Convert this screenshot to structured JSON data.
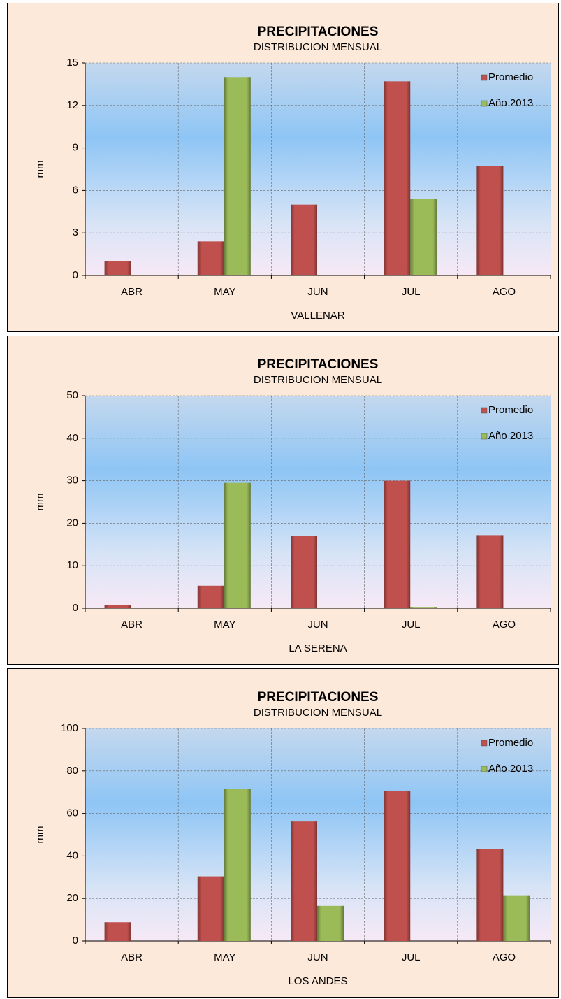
{
  "chart_data": [
    {
      "type": "bar",
      "title": "PRECIPITACIONES",
      "subtitle": "DISTRIBUCION MENSUAL",
      "x_label": "VALLENAR",
      "y_label": "mm",
      "categories": [
        "ABR",
        "MAY",
        "JUN",
        "JUL",
        "AGO"
      ],
      "series": [
        {
          "name": "Promedio",
          "color": "#c0504d",
          "values": [
            1.0,
            2.4,
            5.0,
            13.7,
            7.7
          ]
        },
        {
          "name": "Año 2013",
          "color": "#9bbb59",
          "values": [
            0,
            14.0,
            0,
            5.4,
            0
          ]
        }
      ],
      "ylim": [
        0,
        15
      ],
      "yticks": [
        0,
        3,
        6,
        9,
        12,
        15
      ],
      "grid": true,
      "legend": "top-right"
    },
    {
      "type": "bar",
      "title": "PRECIPITACIONES",
      "subtitle": "DISTRIBUCION MENSUAL",
      "x_label": "LA SERENA",
      "y_label": "mm",
      "categories": [
        "ABR",
        "MAY",
        "JUN",
        "JUL",
        "AGO"
      ],
      "series": [
        {
          "name": "Promedio",
          "color": "#c0504d",
          "values": [
            0.8,
            5.3,
            17.0,
            30.0,
            17.2
          ]
        },
        {
          "name": "Año 2013",
          "color": "#9bbb59",
          "values": [
            0,
            29.5,
            0.1,
            0.3,
            0
          ]
        }
      ],
      "ylim": [
        0,
        50
      ],
      "yticks": [
        0,
        10,
        20,
        30,
        40,
        50
      ],
      "grid": true,
      "legend": "top-right"
    },
    {
      "type": "bar",
      "title": "PRECIPITACIONES",
      "subtitle": "DISTRIBUCION MENSUAL",
      "x_label": "LOS ANDES",
      "y_label": "mm",
      "categories": [
        "ABR",
        "MAY",
        "JUN",
        "JUL",
        "AGO"
      ],
      "series": [
        {
          "name": "Promedio",
          "color": "#c0504d",
          "values": [
            8.8,
            30.4,
            56.2,
            70.6,
            43.3
          ]
        },
        {
          "name": "Año 2013",
          "color": "#9bbb59",
          "values": [
            0,
            71.6,
            16.5,
            0,
            21.5
          ]
        }
      ],
      "ylim": [
        0,
        100
      ],
      "yticks": [
        0,
        20,
        40,
        60,
        80,
        100
      ],
      "grid": true,
      "legend": "top-right"
    }
  ]
}
